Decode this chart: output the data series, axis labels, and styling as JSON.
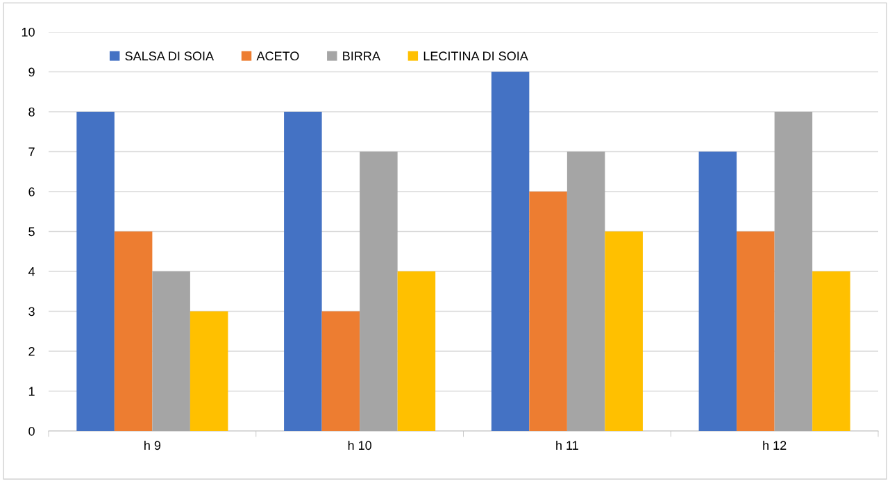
{
  "chart_data": {
    "type": "bar",
    "categories": [
      "h 9",
      "h 10",
      "h 11",
      "h 12"
    ],
    "series": [
      {
        "name": "SALSA DI SOIA",
        "color": "#4472c4",
        "values": [
          8,
          8,
          9,
          7
        ]
      },
      {
        "name": "ACETO",
        "color": "#ed7d31",
        "values": [
          5,
          3,
          6,
          5
        ]
      },
      {
        "name": "BIRRA",
        "color": "#a5a5a5",
        "values": [
          4,
          7,
          7,
          8
        ]
      },
      {
        "name": "LECITINA DI SOIA",
        "color": "#ffc000",
        "values": [
          3,
          4,
          5,
          4
        ]
      }
    ],
    "ylim": [
      0,
      10
    ],
    "yticks": [
      0,
      1,
      2,
      3,
      4,
      5,
      6,
      7,
      8,
      9,
      10
    ],
    "grid": "y",
    "legend": "top left"
  }
}
